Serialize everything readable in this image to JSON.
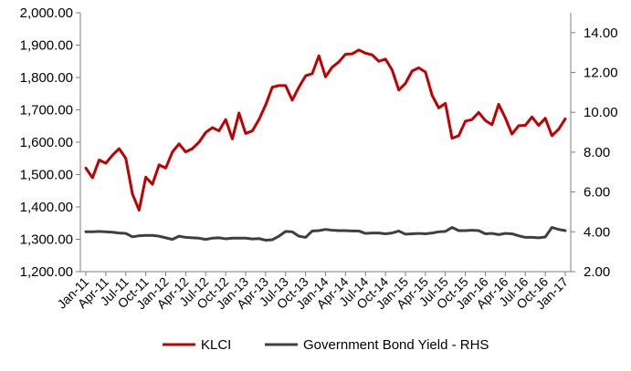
{
  "chart_data": {
    "type": "line",
    "title": "",
    "xlabel": "",
    "ylabel": "",
    "y2label": "",
    "grid": false,
    "legend_position": "bottom",
    "x": [
      "Jan-11",
      "Feb-11",
      "Mar-11",
      "Apr-11",
      "May-11",
      "Jun-11",
      "Jul-11",
      "Aug-11",
      "Sep-11",
      "Oct-11",
      "Nov-11",
      "Dec-11",
      "Jan-12",
      "Feb-12",
      "Mar-12",
      "Apr-12",
      "May-12",
      "Jun-12",
      "Jul-12",
      "Aug-12",
      "Sep-12",
      "Oct-12",
      "Nov-12",
      "Dec-12",
      "Jan-13",
      "Feb-13",
      "Mar-13",
      "Apr-13",
      "May-13",
      "Jun-13",
      "Jul-13",
      "Aug-13",
      "Sep-13",
      "Oct-13",
      "Nov-13",
      "Dec-13",
      "Jan-14",
      "Feb-14",
      "Mar-14",
      "Apr-14",
      "May-14",
      "Jun-14",
      "Jul-14",
      "Aug-14",
      "Sep-14",
      "Oct-14",
      "Nov-14",
      "Dec-14",
      "Jan-15",
      "Feb-15",
      "Mar-15",
      "Apr-15",
      "May-15",
      "Jun-15",
      "Jul-15",
      "Aug-15",
      "Sep-15",
      "Oct-15",
      "Nov-15",
      "Dec-15",
      "Jan-16",
      "Feb-16",
      "Mar-16",
      "Apr-16",
      "May-16",
      "Jun-16",
      "Jul-16",
      "Aug-16",
      "Sep-16",
      "Oct-16",
      "Nov-16",
      "Dec-16",
      "Jan-17"
    ],
    "x_tick_labels": [
      "Jan-11",
      "Apr-11",
      "Jul-11",
      "Oct-11",
      "Jan-12",
      "Apr-12",
      "Jul-12",
      "Oct-12",
      "Jan-13",
      "Apr-13",
      "Jul-13",
      "Oct-13",
      "Jan-14",
      "Apr-14",
      "Jul-14",
      "Oct-14",
      "Jan-15",
      "Apr-15",
      "Jul-15",
      "Oct-15",
      "Jan-16",
      "Apr-16",
      "Jul-16",
      "Oct-16",
      "Jan-17"
    ],
    "y_left": {
      "range": [
        1200,
        2000
      ],
      "ticks": [
        1200,
        1300,
        1400,
        1500,
        1600,
        1700,
        1800,
        1900,
        2000
      ],
      "tick_labels": [
        "1,200.00",
        "1,300.00",
        "1,400.00",
        "1,500.00",
        "1,600.00",
        "1,700.00",
        "1,800.00",
        "1,900.00",
        "2,000.00"
      ]
    },
    "y_right": {
      "range": [
        2,
        15
      ],
      "ticks": [
        2,
        4,
        6,
        8,
        10,
        12,
        14
      ],
      "tick_labels": [
        "2.00",
        "4.00",
        "6.00",
        "8.00",
        "10.00",
        "12.00",
        "14.00"
      ]
    },
    "series": [
      {
        "name": "KLCI",
        "axis": "left",
        "color": "#C00000",
        "values": [
          1520,
          1490,
          1545,
          1535,
          1560,
          1580,
          1550,
          1440,
          1390,
          1492,
          1470,
          1530,
          1520,
          1570,
          1595,
          1570,
          1580,
          1600,
          1630,
          1645,
          1635,
          1670,
          1610,
          1690,
          1627,
          1635,
          1670,
          1715,
          1770,
          1775,
          1775,
          1730,
          1770,
          1805,
          1812,
          1867,
          1802,
          1832,
          1848,
          1872,
          1873,
          1885,
          1875,
          1870,
          1850,
          1857,
          1823,
          1761,
          1782,
          1820,
          1830,
          1817,
          1745,
          1706,
          1720,
          1612,
          1620,
          1665,
          1670,
          1692,
          1667,
          1654,
          1717,
          1675,
          1625,
          1651,
          1652,
          1678,
          1652,
          1674,
          1620,
          1640,
          1672
        ]
      },
      {
        "name": "Government Bond Yield - RHS",
        "axis": "right",
        "color": "#3F3F3F",
        "values": [
          4.0,
          4.0,
          4.02,
          4.0,
          3.98,
          3.94,
          3.92,
          3.75,
          3.8,
          3.82,
          3.82,
          3.78,
          3.7,
          3.62,
          3.78,
          3.72,
          3.7,
          3.68,
          3.62,
          3.68,
          3.7,
          3.65,
          3.68,
          3.68,
          3.68,
          3.64,
          3.66,
          3.58,
          3.6,
          3.78,
          4.02,
          4.0,
          3.78,
          3.72,
          4.04,
          4.06,
          4.12,
          4.08,
          4.06,
          4.06,
          4.04,
          4.04,
          3.92,
          3.94,
          3.94,
          3.9,
          3.94,
          4.04,
          3.88,
          3.9,
          3.92,
          3.9,
          3.94,
          4.0,
          4.02,
          4.22,
          4.06,
          4.06,
          4.08,
          4.06,
          3.9,
          3.92,
          3.86,
          3.92,
          3.9,
          3.8,
          3.72,
          3.72,
          3.7,
          3.74,
          4.22,
          4.12,
          4.06
        ]
      }
    ]
  }
}
